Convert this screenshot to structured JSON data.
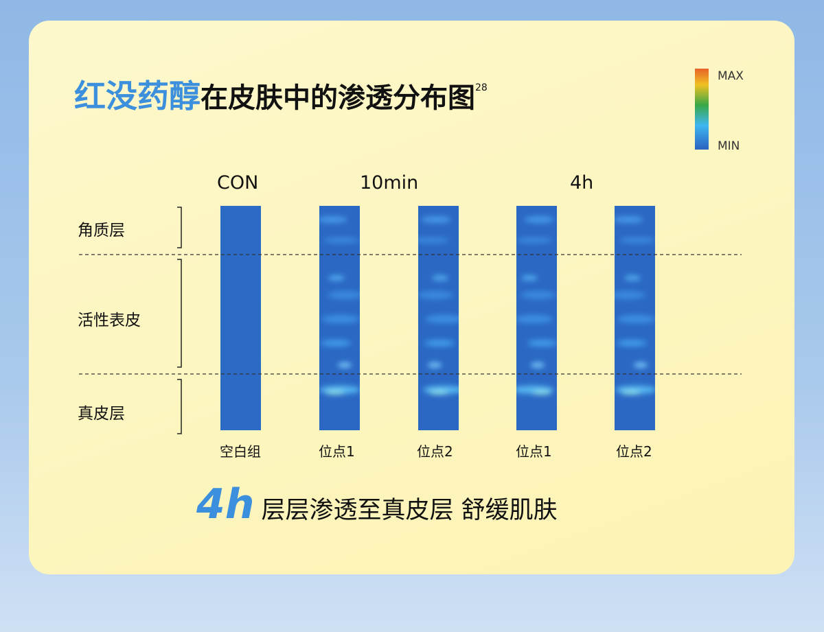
{
  "title": {
    "highlight": "红没药醇",
    "text": "在皮肤中的渗透分布图",
    "superscript": "28"
  },
  "legend": {
    "max": "MAX",
    "min": "MIN"
  },
  "groups": [
    "CON",
    "10min",
    "4h"
  ],
  "layers": [
    "角质层",
    "活性表皮",
    "真皮层"
  ],
  "strips": [
    "空白组",
    "位点1",
    "位点2",
    "位点1",
    "位点2"
  ],
  "footer": {
    "highlight": "4h",
    "text": "层层渗透至真皮层 舒缓肌肤"
  }
}
